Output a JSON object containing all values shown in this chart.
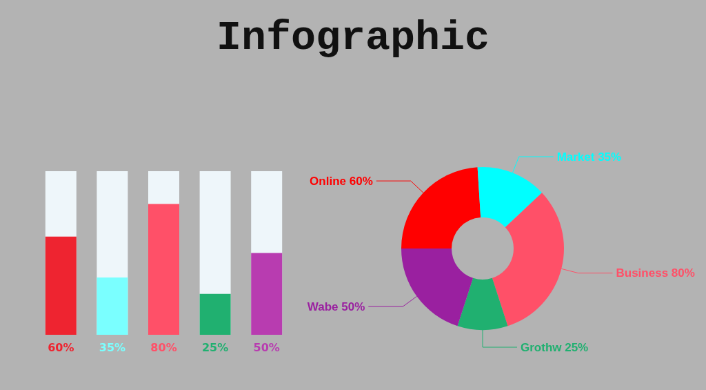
{
  "chart_data": [
    {
      "type": "bar",
      "title": "Infographic",
      "categories": [
        null,
        null,
        null,
        null,
        null
      ],
      "values": [
        60,
        35,
        80,
        25,
        50
      ],
      "colors": [
        "#ee2430",
        "#7affff",
        "#ff5068",
        "#20b070",
        "#b83cb0"
      ],
      "value_labels": [
        "60%",
        "35%",
        "80%",
        "25%",
        "50%"
      ],
      "ylim": [
        0,
        100
      ],
      "tick_labels": false
    },
    {
      "type": "donut",
      "categories": [
        "Online",
        "Market",
        "Business",
        "Grothw",
        "Wabe"
      ],
      "values": [
        60,
        35,
        80,
        25,
        50
      ],
      "colors": [
        "#ff0000",
        "#00ffff",
        "#ff5068",
        "#20b070",
        "#9a20a0"
      ],
      "value_labels": [
        "60%",
        "35%",
        "80%",
        "25%",
        "50%"
      ]
    }
  ]
}
